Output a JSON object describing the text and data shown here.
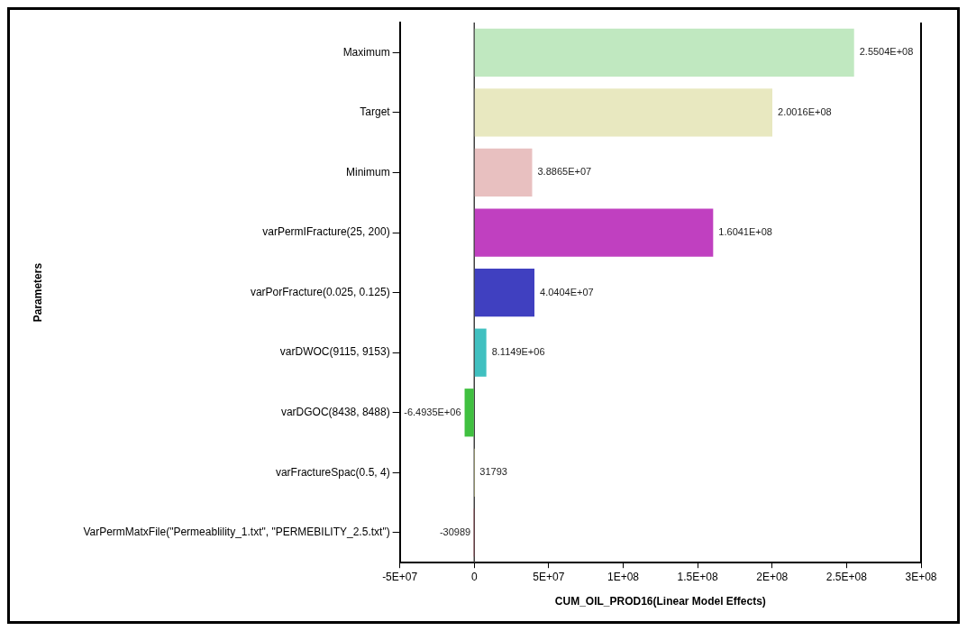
{
  "chart_data": {
    "type": "bar",
    "orientation": "horizontal",
    "xlabel": "CUM_OIL_PROD16(Linear Model Effects)",
    "ylabel": "Parameters",
    "categories": [
      "Maximum",
      "Target",
      "Minimum",
      "varPermIFracture(25, 200)",
      "varPorFracture(0.025, 0.125)",
      "varDWOC(9115, 9153)",
      "varDGOC(8438, 8488)",
      "varFractureSpac(0.5, 4)",
      "VarPermMatxFile(\"Permeablility_1.txt\", \"PERMEBILITY_2.5.txt\")"
    ],
    "values": [
      255040000,
      200160000,
      38865000,
      160410000,
      40404000,
      8114900,
      -6493500,
      31793,
      -30989
    ],
    "value_labels": [
      "2.5504E+08",
      "2.0016E+08",
      "3.8865E+07",
      "1.6041E+08",
      "4.0404E+07",
      "8.1149E+06",
      "-6.4935E+06",
      "31793",
      "-30989"
    ],
    "colors": [
      "#c0e8c0",
      "#e8e8c0",
      "#e8c0c0",
      "#c040c0",
      "#4040c0",
      "#40c0c0",
      "#40c040",
      "#e8e8a0",
      "#c04050"
    ],
    "xlim": [
      -50000000,
      300000000
    ],
    "xticks": [
      {
        "value": -50000000,
        "label": "-5E+07"
      },
      0,
      {
        "value": 50000000,
        "label": "5E+07"
      },
      {
        "value": 100000000,
        "label": "1E+08"
      },
      {
        "value": 150000000,
        "label": "1.5E+08"
      },
      {
        "value": 200000000,
        "label": "2E+08"
      },
      {
        "value": 250000000,
        "label": "2.5E+08"
      },
      {
        "value": 300000000,
        "label": "3E+08"
      }
    ],
    "ref_lines": [
      {
        "axis": "x",
        "value": 0,
        "color": "#404040"
      }
    ],
    "grid": false,
    "legend": false
  }
}
